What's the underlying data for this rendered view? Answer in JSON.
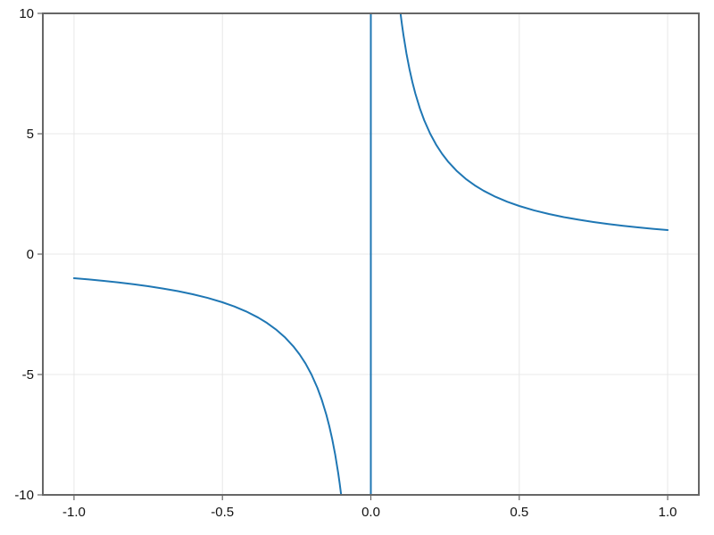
{
  "figure": {
    "background": "#ffffff",
    "title": ""
  },
  "chart_data": {
    "type": "line",
    "title": "",
    "xlabel": "",
    "ylabel": "",
    "function": "y = 1/x",
    "xlim": [
      -1.105,
      1.105
    ],
    "ylim": [
      -10,
      10
    ],
    "xticks": [
      -1.0,
      -0.5,
      0.0,
      0.5,
      1.0
    ],
    "xtick_labels": [
      "-1.0",
      "-0.5",
      "0.0",
      "0.5",
      "1.0"
    ],
    "yticks": [
      -10,
      -5,
      0,
      5,
      10
    ],
    "ytick_labels": [
      "-10",
      "-5",
      "0",
      "5",
      "10"
    ],
    "grid": true,
    "legend_position": "none",
    "colors": {
      "line": "#1f77b4",
      "grid": "#e8e8e8",
      "spine": "#666666",
      "tick_label": "#111111",
      "background": "#ffffff"
    },
    "series": [
      {
        "name": "reciprocal-left-branch",
        "points": [
          [
            -1.0,
            -1.0
          ],
          [
            -0.95,
            -1.053
          ],
          [
            -0.9,
            -1.111
          ],
          [
            -0.85,
            -1.176
          ],
          [
            -0.8,
            -1.25
          ],
          [
            -0.75,
            -1.333
          ],
          [
            -0.7,
            -1.429
          ],
          [
            -0.65,
            -1.538
          ],
          [
            -0.6,
            -1.667
          ],
          [
            -0.55,
            -1.818
          ],
          [
            -0.5,
            -2.0
          ],
          [
            -0.46,
            -2.174
          ],
          [
            -0.42,
            -2.381
          ],
          [
            -0.38,
            -2.632
          ],
          [
            -0.35,
            -2.857
          ],
          [
            -0.32,
            -3.125
          ],
          [
            -0.29,
            -3.448
          ],
          [
            -0.26,
            -3.846
          ],
          [
            -0.24,
            -4.167
          ],
          [
            -0.22,
            -4.545
          ],
          [
            -0.2,
            -5.0
          ],
          [
            -0.18,
            -5.556
          ],
          [
            -0.165,
            -6.061
          ],
          [
            -0.15,
            -6.667
          ],
          [
            -0.14,
            -7.143
          ],
          [
            -0.13,
            -7.692
          ],
          [
            -0.12,
            -8.333
          ],
          [
            -0.11,
            -9.091
          ],
          [
            -0.105,
            -9.524
          ],
          [
            -0.1,
            -10.0
          ]
        ]
      },
      {
        "name": "asymptote-connector",
        "points": [
          [
            0.0,
            -10.0
          ],
          [
            0.0,
            10.0
          ]
        ]
      },
      {
        "name": "reciprocal-right-branch",
        "points": [
          [
            0.1,
            10.0
          ],
          [
            0.105,
            9.524
          ],
          [
            0.11,
            9.091
          ],
          [
            0.12,
            8.333
          ],
          [
            0.13,
            7.692
          ],
          [
            0.14,
            7.143
          ],
          [
            0.15,
            6.667
          ],
          [
            0.165,
            6.061
          ],
          [
            0.18,
            5.556
          ],
          [
            0.2,
            5.0
          ],
          [
            0.22,
            4.545
          ],
          [
            0.24,
            4.167
          ],
          [
            0.26,
            3.846
          ],
          [
            0.29,
            3.448
          ],
          [
            0.32,
            3.125
          ],
          [
            0.35,
            2.857
          ],
          [
            0.38,
            2.632
          ],
          [
            0.42,
            2.381
          ],
          [
            0.46,
            2.174
          ],
          [
            0.5,
            2.0
          ],
          [
            0.55,
            1.818
          ],
          [
            0.6,
            1.667
          ],
          [
            0.65,
            1.538
          ],
          [
            0.7,
            1.429
          ],
          [
            0.75,
            1.333
          ],
          [
            0.8,
            1.25
          ],
          [
            0.85,
            1.176
          ],
          [
            0.9,
            1.111
          ],
          [
            0.95,
            1.053
          ],
          [
            1.0,
            1.0
          ]
        ]
      }
    ]
  }
}
